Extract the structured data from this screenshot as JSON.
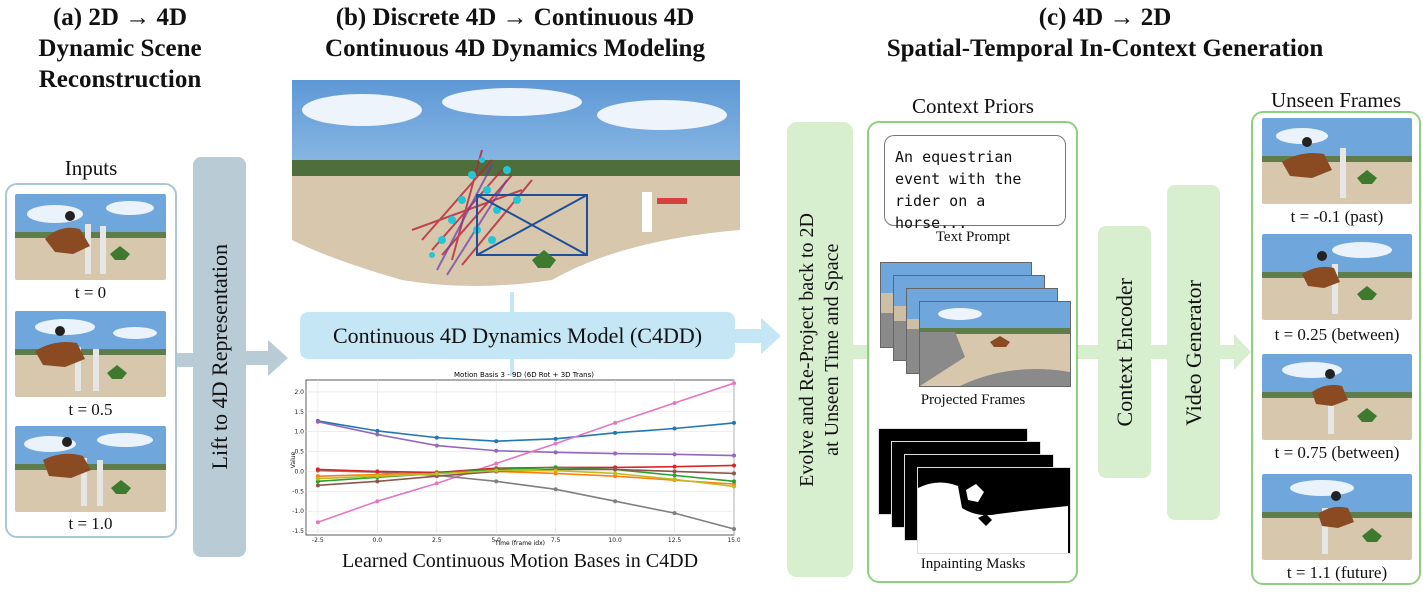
{
  "panel_a": {
    "title_line1": "(a) 2D → 4D",
    "title_line2": "Dynamic Scene",
    "title_line3": "Reconstruction",
    "inputs_label": "Inputs",
    "frames": [
      "t = 0",
      "t = 0.5",
      "t = 1.0"
    ],
    "lift_label": "Lift to 4D Representation"
  },
  "panel_b": {
    "title_line1": "(b)  Discrete 4D → Continuous 4D",
    "title_line2": "Continuous 4D Dynamics Modeling",
    "model_label": "Continuous 4D Dynamics Model (C4DD)",
    "bases_label": "Learned Continuous Motion Bases in C4DD"
  },
  "panel_c": {
    "title_line1": "(c) 4D → 2D",
    "title_line2": "Spatial-Temporal In-Context Generation",
    "reproject_line1": "Evolve and Re-Project back to 2D",
    "reproject_line2": "at Unseen Time and Space",
    "context_priors_label": "Context Priors",
    "text_prompt": "An equestrian event with the rider on a horse...",
    "text_prompt_label": "Text Prompt",
    "projected_frames_label": "Projected Frames",
    "inpainting_masks_label": "Inpainting Masks",
    "context_encoder_label": "Context Encoder",
    "video_generator_label": "Video Generator",
    "unseen_frames_label": "Unseen Frames",
    "unseen_frames": [
      "t = -0.1 (past)",
      "t = 0.25 (between)",
      "t = 0.75 (between)",
      "t = 1.1 (future)"
    ]
  },
  "colors": {
    "blue_box": "#b9ccd6",
    "blue_frame": "#a9c8d6",
    "model_box": "#c4e6f5",
    "green_box": "#d8efcf",
    "green_frame": "#8fd07e",
    "sky": "#6fa7dd",
    "sand": "#d7c7ad"
  },
  "chart_data": {
    "type": "line",
    "title": "Motion Basis 3 - 9D (6D Rot + 3D Trans)",
    "xlabel": "Time (frame idx)",
    "ylabel": "Value",
    "xlim": [
      -3,
      15
    ],
    "ylim": [
      -1.6,
      2.3
    ],
    "xticks": [
      "-2.5",
      "0.0",
      "2.5",
      "5.0",
      "7.5",
      "10.0",
      "12.5",
      "15.0"
    ],
    "yticks": [
      "2.0",
      "1.5",
      "1.0",
      "0.5",
      "0.0",
      "-0.5",
      "-1.0",
      "-1.5"
    ],
    "x": [
      -2.5,
      0,
      2.5,
      5,
      7.5,
      10,
      12.5,
      15
    ],
    "series": [
      {
        "color": "#1f77b4",
        "values": [
          1.27,
          1.02,
          0.85,
          0.76,
          0.82,
          0.97,
          1.08,
          1.22
        ]
      },
      {
        "color": "#9467bd",
        "values": [
          1.25,
          0.93,
          0.65,
          0.52,
          0.48,
          0.45,
          0.43,
          0.4
        ]
      },
      {
        "color": "#e377c2",
        "values": [
          -1.28,
          -0.75,
          -0.3,
          0.2,
          0.7,
          1.22,
          1.72,
          2.22
        ]
      },
      {
        "color": "#7f7f7f",
        "values": [
          0.02,
          -0.02,
          -0.1,
          -0.25,
          -0.45,
          -0.75,
          -1.05,
          -1.45
        ]
      },
      {
        "color": "#ff7f0e",
        "values": [
          -0.12,
          -0.08,
          -0.02,
          0.0,
          -0.05,
          -0.12,
          -0.22,
          -0.32
        ]
      },
      {
        "color": "#d62728",
        "values": [
          0.05,
          0.0,
          -0.03,
          0.08,
          0.1,
          0.1,
          0.12,
          0.15
        ]
      },
      {
        "color": "#2ca02c",
        "values": [
          -0.25,
          -0.15,
          -0.05,
          0.05,
          0.1,
          0.05,
          -0.1,
          -0.25
        ]
      },
      {
        "color": "#8c564b",
        "values": [
          -0.35,
          -0.25,
          -0.12,
          0.0,
          0.05,
          0.05,
          0.0,
          -0.05
        ]
      },
      {
        "color": "#bcbd22",
        "values": [
          -0.18,
          -0.12,
          -0.06,
          0.02,
          0.02,
          -0.05,
          -0.2,
          -0.38
        ]
      }
    ]
  }
}
